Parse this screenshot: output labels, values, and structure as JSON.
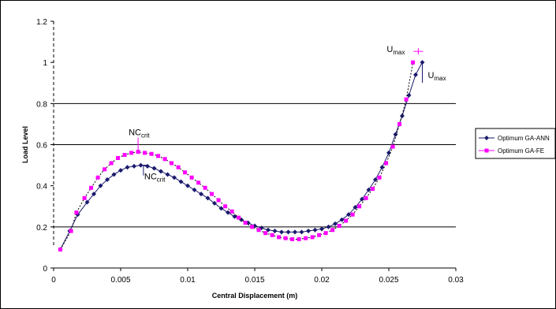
{
  "chart_data": {
    "type": "line",
    "title": "",
    "xlabel": "Central Displacement (m)",
    "ylabel": "Load Level",
    "xlim": [
      0,
      0.03
    ],
    "ylim": [
      0,
      1.2
    ],
    "x_ticks": [
      "0",
      "0.005",
      "0.01",
      "0.015",
      "0.02",
      "0.025",
      "0.03"
    ],
    "y_ticks": [
      "0",
      "0.2",
      "0.4",
      "0.6",
      "0.8",
      "1",
      "1.2"
    ],
    "grid": "horizontal lines at 0.2, 0.6 and 0.8",
    "legend_position": "right",
    "colors": {
      "ga_ann": "#1a1a6e",
      "ga_fe": "#ff00ff",
      "grid": "#000000"
    },
    "series": [
      {
        "name": "Optimum GA-ANN",
        "color": "#1a1a6e",
        "marker": "diamond",
        "x": [
          0.0005,
          0.0012,
          0.0018,
          0.0025,
          0.003,
          0.0035,
          0.004,
          0.0045,
          0.005,
          0.0055,
          0.006,
          0.0065,
          0.007,
          0.0075,
          0.008,
          0.0085,
          0.009,
          0.0095,
          0.01,
          0.0105,
          0.011,
          0.0115,
          0.012,
          0.0125,
          0.013,
          0.0135,
          0.014,
          0.0145,
          0.015,
          0.0155,
          0.016,
          0.0165,
          0.017,
          0.0175,
          0.018,
          0.0185,
          0.019,
          0.0195,
          0.02,
          0.0205,
          0.021,
          0.0215,
          0.022,
          0.0225,
          0.023,
          0.0235,
          0.024,
          0.0245,
          0.025,
          0.0255,
          0.026,
          0.0265,
          0.027,
          0.0275
        ],
        "y": [
          0.09,
          0.18,
          0.26,
          0.32,
          0.36,
          0.4,
          0.43,
          0.455,
          0.475,
          0.49,
          0.495,
          0.5,
          0.495,
          0.485,
          0.47,
          0.455,
          0.44,
          0.42,
          0.4,
          0.38,
          0.36,
          0.34,
          0.315,
          0.29,
          0.27,
          0.25,
          0.235,
          0.22,
          0.205,
          0.195,
          0.185,
          0.18,
          0.175,
          0.175,
          0.175,
          0.175,
          0.18,
          0.185,
          0.19,
          0.2,
          0.215,
          0.235,
          0.26,
          0.295,
          0.335,
          0.38,
          0.43,
          0.49,
          0.56,
          0.65,
          0.74,
          0.84,
          0.94,
          1.0
        ]
      },
      {
        "name": "Optimum GA-FE",
        "color": "#ff00ff",
        "marker": "square",
        "x": [
          0.0005,
          0.0013,
          0.0017,
          0.0023,
          0.0028,
          0.0033,
          0.0038,
          0.0043,
          0.0048,
          0.0053,
          0.0058,
          0.0063,
          0.0068,
          0.0073,
          0.0078,
          0.0083,
          0.0088,
          0.0093,
          0.0098,
          0.0103,
          0.0108,
          0.0113,
          0.0118,
          0.0123,
          0.0128,
          0.0133,
          0.0138,
          0.0143,
          0.0148,
          0.0153,
          0.0158,
          0.0163,
          0.0168,
          0.0173,
          0.0178,
          0.0183,
          0.0188,
          0.0193,
          0.0198,
          0.0203,
          0.0208,
          0.0213,
          0.0218,
          0.0223,
          0.0228,
          0.0233,
          0.0238,
          0.0243,
          0.0248,
          0.0253,
          0.0258,
          0.0263,
          0.0268
        ],
        "y": [
          0.09,
          0.18,
          0.27,
          0.34,
          0.39,
          0.44,
          0.48,
          0.51,
          0.535,
          0.55,
          0.56,
          0.565,
          0.56,
          0.555,
          0.545,
          0.53,
          0.51,
          0.49,
          0.465,
          0.44,
          0.415,
          0.39,
          0.36,
          0.33,
          0.3,
          0.275,
          0.245,
          0.22,
          0.2,
          0.185,
          0.17,
          0.16,
          0.15,
          0.145,
          0.14,
          0.14,
          0.145,
          0.15,
          0.16,
          0.17,
          0.185,
          0.205,
          0.23,
          0.26,
          0.3,
          0.34,
          0.385,
          0.44,
          0.51,
          0.59,
          0.7,
          0.82,
          1.0
        ]
      }
    ],
    "annotations": [
      {
        "id": "nccrit-fe",
        "base": "NC",
        "sub": "crit",
        "x": 0.0063,
        "y": 0.565,
        "marker_color": "#ff00ff"
      },
      {
        "id": "nccrit-ann",
        "base": "NC",
        "sub": "crit",
        "x": 0.0067,
        "y": 0.5,
        "marker_color": "#1a1a6e"
      },
      {
        "id": "umax-fe",
        "base": "U",
        "sub": "max",
        "x": 0.0272,
        "y": 1.0,
        "marker_color": "#ff00ff"
      },
      {
        "id": "umax-ann",
        "base": "U",
        "sub": "max",
        "x": 0.0275,
        "y": 1.0,
        "marker_color": "#1a1a6e"
      }
    ]
  }
}
